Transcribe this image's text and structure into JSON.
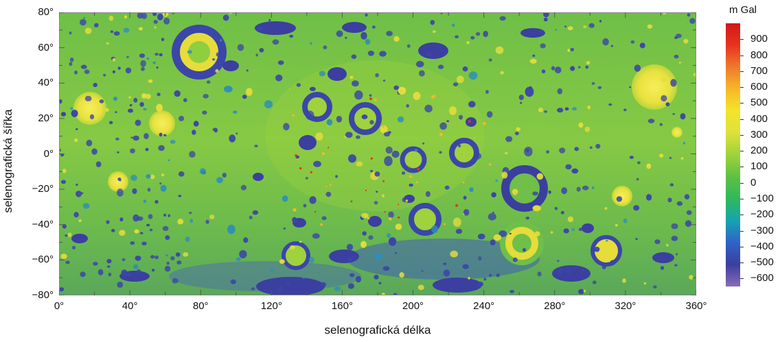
{
  "axes": {
    "x_label": "selenografická délka",
    "y_label": "selenografická šířka",
    "x_ticks": [
      "0°",
      "40°",
      "80°",
      "120°",
      "160°",
      "200°",
      "240°",
      "280°",
      "320°",
      "360°"
    ],
    "y_ticks": [
      "80°",
      "60°",
      "40°",
      "20°",
      "0°",
      "−20°",
      "−40°",
      "−60°",
      "−80°"
    ],
    "x_range": [
      0,
      360
    ],
    "y_range": [
      -80,
      80
    ]
  },
  "colorbar": {
    "title": "m Gal",
    "labels": [
      "900",
      "800",
      "700",
      "600",
      "500",
      "400",
      "300",
      "200",
      "100",
      "0",
      "−100",
      "−200",
      "−300",
      "−400",
      "−500",
      "−600"
    ],
    "range": [
      -650,
      1000
    ],
    "colors": [
      "#8a6bb6",
      "#3a3f9e",
      "#2f63c8",
      "#16a3b0",
      "#2fb95c",
      "#5ec043",
      "#9fd23c",
      "#dde13a",
      "#f4e42b",
      "#f6b82a",
      "#ee7a2a",
      "#e8331f",
      "#d01818"
    ]
  },
  "map_colors": {
    "background": "#7cc746",
    "lowland": "#3a4fb0",
    "rim": "#e6dc3a",
    "high": "#f3ea45"
  }
}
